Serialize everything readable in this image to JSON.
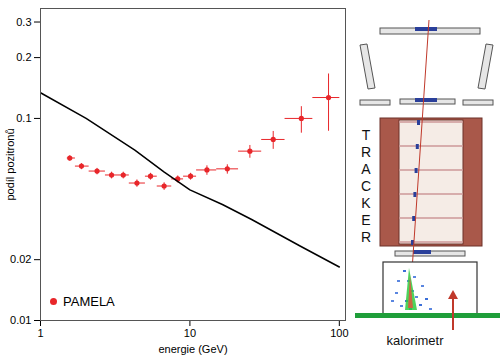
{
  "chart_data": {
    "type": "scatter",
    "x_label": "energie (GeV)",
    "y_label": "podíl pozitronů",
    "log": true,
    "grid": false,
    "legend": "bottom-left",
    "xlim": [
      1,
      110
    ],
    "ylim": [
      0.01,
      0.35
    ],
    "xticks": [
      1,
      10,
      100
    ],
    "yticks": [
      0.01,
      0.02,
      0.1,
      0.2,
      0.3
    ],
    "series": [
      {
        "name": "PAMELA",
        "type": "scatter",
        "color": "#e8262a",
        "marker": "circle",
        "x": [
          1.57,
          1.88,
          2.39,
          2.99,
          3.58,
          4.42,
          5.45,
          6.72,
          8.29,
          10.1,
          13.0,
          17.8,
          25.2,
          36.1,
          55.7,
          84.7
        ],
        "values": [
          0.0637,
          0.0581,
          0.0549,
          0.0525,
          0.0525,
          0.0479,
          0.0518,
          0.0463,
          0.0502,
          0.0518,
          0.0556,
          0.0563,
          0.0689,
          0.0787,
          0.1,
          0.1269
        ],
        "y_error": [
          0.002,
          0.002,
          0.002,
          0.002,
          0.002,
          0.002,
          0.002,
          0.002,
          0.002,
          0.002,
          0.003,
          0.003,
          0.005,
          0.008,
          0.015,
          0.04
        ],
        "x_range": [
          [
            1.5,
            1.7
          ],
          [
            1.7,
            2.1
          ],
          [
            2.1,
            2.7
          ],
          [
            2.7,
            3.3
          ],
          [
            3.3,
            3.9
          ],
          [
            3.9,
            5
          ],
          [
            5,
            6
          ],
          [
            6,
            7.5
          ],
          [
            7.5,
            9
          ],
          [
            9,
            11
          ],
          [
            11,
            15
          ],
          [
            15,
            21
          ],
          [
            21,
            30
          ],
          [
            30,
            43
          ],
          [
            43,
            66
          ],
          [
            66,
            100
          ]
        ]
      },
      {
        "type": "line",
        "color": "#000000",
        "line_style": "solid",
        "x": [
          1,
          2.02,
          4.28,
          6.7,
          10,
          16.5,
          25.9,
          55,
          100
        ],
        "values": [
          0.134,
          0.1,
          0.0697,
          0.0544,
          0.0443,
          0.0375,
          0.0316,
          0.0233,
          0.0184
        ]
      }
    ]
  },
  "detector": {
    "tracker_label": "TRACKER",
    "calorimeter_label": "kalorimetr"
  }
}
